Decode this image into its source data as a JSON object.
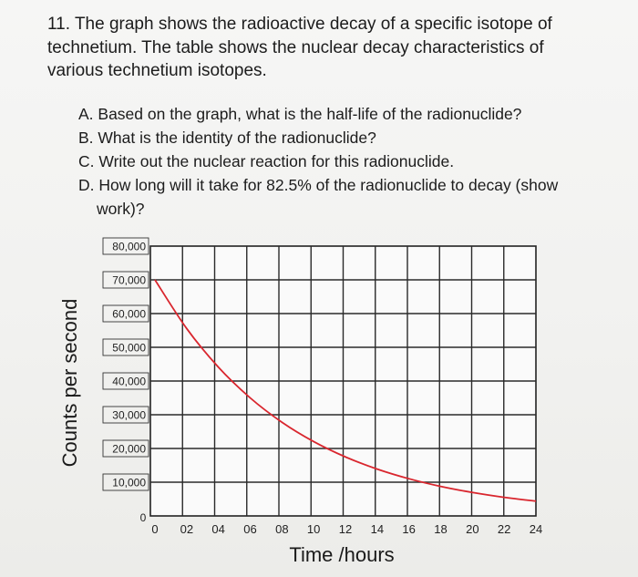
{
  "question": {
    "line1": "11. The graph shows the radioactive decay of a specific isotope of",
    "line2": "technetium.   The table shows the nuclear decay characteristics of",
    "line3": "various technetium isotopes."
  },
  "subquestions": {
    "a": "A. Based on the graph, what is the half-life of the radionuclide?",
    "b": "B. What is the identity of the radionuclide?",
    "c": "C. Write out the nuclear reaction for this radionuclide.",
    "d1": "D. How long will it take for 82.5% of the radionuclide to decay (show",
    "d2": "work)?"
  },
  "chart_data": {
    "type": "line",
    "xlabel": "Time /hours",
    "ylabel": "Counts per second",
    "y_ticks": [
      "80,000",
      "70,000",
      "60,000",
      "50,000",
      "40,000",
      "30,000",
      "20,000",
      "10,000",
      "0"
    ],
    "x_ticks": [
      "0",
      "02",
      "04",
      "06",
      "08",
      "10",
      "12",
      "14",
      "16",
      "18",
      "20",
      "22",
      "24"
    ],
    "xlim": [
      0,
      24
    ],
    "ylim": [
      0,
      80000
    ],
    "grid": true,
    "series": [
      {
        "color": "#d9262e",
        "x": [
          0,
          2,
          4,
          6,
          8,
          10,
          12,
          14,
          16,
          18,
          20,
          22,
          24
        ],
        "values": [
          70000,
          55560,
          44100,
          35000,
          27780,
          22050,
          17500,
          13890,
          11030,
          8750,
          6950,
          5510,
          4380
        ]
      }
    ]
  }
}
